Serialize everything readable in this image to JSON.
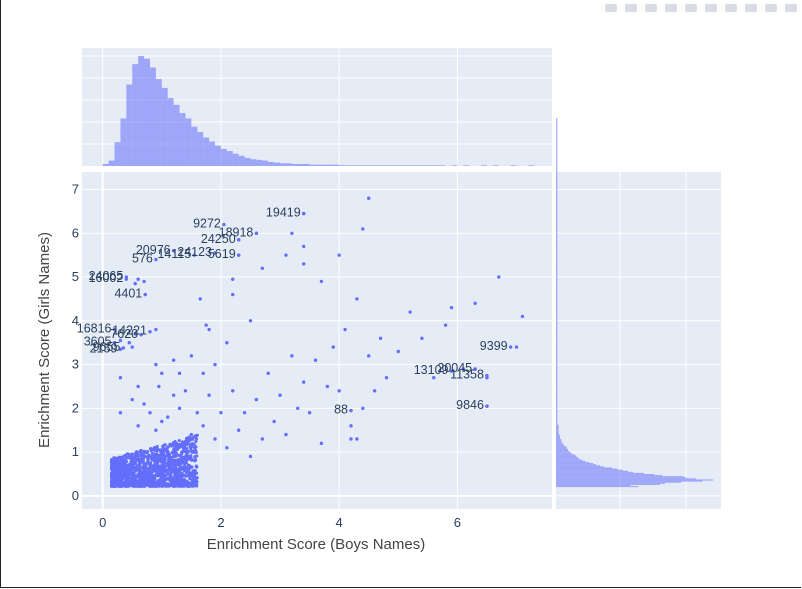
{
  "modebar": {
    "buttons": [
      {
        "name": "camera-icon"
      },
      {
        "name": "zoom-icon"
      },
      {
        "name": "pan-icon"
      },
      {
        "name": "box-select-icon"
      },
      {
        "name": "lasso-select-icon"
      },
      {
        "name": "zoom-in-icon"
      },
      {
        "name": "zoom-out-icon"
      },
      {
        "name": "autoscale-icon"
      },
      {
        "name": "reset-axes-icon"
      },
      {
        "name": "plotly-logo-icon"
      }
    ]
  },
  "chart_data": {
    "type": "scatter",
    "title": "",
    "xlabel": "Enrichment Score (Boys Names)",
    "ylabel": "Enrichment Score (Girls Names)",
    "xlim": [
      -0.35,
      7.6
    ],
    "ylim": [
      -0.3,
      7.4
    ],
    "xticks": [
      0,
      2,
      4,
      6
    ],
    "yticks": [
      0,
      1,
      2,
      3,
      4,
      5,
      6,
      7
    ],
    "colors": {
      "marker": "#636efa",
      "bars": "#636efa",
      "plot_bg": "#e5ecf6",
      "grid": "#ffffff",
      "text": "#2a3f5f"
    },
    "marginal_x": "histogram",
    "marginal_y": "histogram",
    "labeled_points": [
      {
        "label": "19419",
        "x": 3.4,
        "y": 6.45
      },
      {
        "label": "9272",
        "x": 2.05,
        "y": 6.2
      },
      {
        "label": "18918",
        "x": 2.6,
        "y": 6.0
      },
      {
        "label": "24250",
        "x": 2.3,
        "y": 5.85
      },
      {
        "label": "20976",
        "x": 1.2,
        "y": 5.6
      },
      {
        "label": "24123",
        "x": 1.9,
        "y": 5.55
      },
      {
        "label": "5619",
        "x": 2.3,
        "y": 5.5
      },
      {
        "label": "576",
        "x": 0.9,
        "y": 5.4
      },
      {
        "label": "14115",
        "x": 1.55,
        "y": 5.5
      },
      {
        "label": "24065",
        "x": 0.4,
        "y": 5.0
      },
      {
        "label": "16002",
        "x": 0.4,
        "y": 4.95
      },
      {
        "label": "4401",
        "x": 0.72,
        "y": 4.6
      },
      {
        "label": "16816",
        "x": 0.2,
        "y": 3.8
      },
      {
        "label": "14221",
        "x": 0.8,
        "y": 3.75
      },
      {
        "label": "7620",
        "x": 0.65,
        "y": 3.68
      },
      {
        "label": "3605",
        "x": 0.2,
        "y": 3.5
      },
      {
        "label": "9655",
        "x": 0.35,
        "y": 3.38
      },
      {
        "label": "2159",
        "x": 0.3,
        "y": 3.35
      },
      {
        "label": "9399",
        "x": 6.9,
        "y": 3.4
      },
      {
        "label": "13109",
        "x": 5.9,
        "y": 2.85
      },
      {
        "label": "20045",
        "x": 6.3,
        "y": 2.9
      },
      {
        "label": "11358",
        "x": 6.5,
        "y": 2.75
      },
      {
        "label": "9846",
        "x": 6.5,
        "y": 2.05
      },
      {
        "label": "88",
        "x": 4.2,
        "y": 1.95
      }
    ],
    "x_hist_counts": [
      3,
      8,
      35,
      70,
      120,
      150,
      162,
      158,
      145,
      128,
      115,
      100,
      90,
      78,
      70,
      58,
      50,
      42,
      36,
      30,
      25,
      22,
      18,
      15,
      12,
      10,
      9,
      8,
      6,
      5,
      4,
      4,
      3,
      3,
      3,
      2,
      2,
      2,
      2,
      2,
      1,
      1,
      1,
      1,
      1,
      1,
      1,
      1,
      1,
      1,
      1,
      1,
      1,
      1,
      1,
      1,
      1,
      1,
      0,
      1,
      0,
      1,
      0,
      0,
      1,
      0,
      1,
      0,
      0,
      1,
      0,
      0,
      1,
      0,
      0,
      0,
      0,
      0,
      0
    ],
    "y_hist_counts": [
      62,
      56,
      78,
      82,
      94,
      110,
      118,
      105,
      98,
      96,
      80,
      74,
      66,
      58,
      54,
      50,
      46,
      42,
      36,
      33,
      30,
      28,
      25,
      22,
      20,
      18,
      17,
      16,
      15,
      14,
      12,
      11,
      10,
      9,
      9,
      8,
      8,
      7,
      6,
      5,
      5,
      4,
      4,
      4,
      3,
      3,
      3,
      3,
      2,
      2,
      2,
      2,
      2,
      2,
      2,
      2,
      2,
      1,
      1,
      1,
      1,
      1,
      1,
      1,
      1,
      1,
      1,
      1,
      1,
      1,
      1,
      1,
      1,
      1,
      1,
      1,
      1,
      1,
      1,
      1,
      1,
      1,
      1,
      1,
      1,
      1,
      1,
      1,
      1,
      1,
      1,
      1,
      1,
      1,
      1,
      1,
      1,
      1,
      1,
      1,
      1,
      1,
      1,
      1,
      1,
      1,
      1,
      1,
      1,
      1,
      1,
      1,
      1,
      1,
      1,
      1,
      1,
      1,
      1,
      1,
      1,
      1,
      1,
      1,
      1,
      1,
      1,
      1,
      1,
      1,
      1,
      1,
      1,
      1,
      1,
      1,
      1,
      1,
      1,
      1,
      1,
      1,
      1,
      1,
      1,
      1,
      1,
      1,
      1,
      1,
      1,
      1,
      1,
      1,
      1,
      1,
      1,
      1,
      1,
      1,
      1,
      1,
      1,
      1,
      1,
      1,
      1,
      1,
      1,
      1,
      1,
      1,
      1,
      1,
      1,
      1,
      1,
      1,
      1,
      1,
      1,
      1,
      1,
      1,
      1,
      1,
      1,
      1,
      1,
      1,
      1,
      1,
      1,
      1,
      1,
      1,
      1,
      1,
      1,
      1,
      1,
      1,
      1,
      1,
      1,
      1,
      1,
      1,
      1,
      1,
      1,
      1,
      1,
      1,
      1,
      1,
      1,
      1,
      1,
      1,
      1,
      1,
      1,
      1,
      1,
      1,
      1,
      1,
      1,
      1,
      1,
      1,
      1,
      1,
      1,
      1,
      1,
      1,
      1,
      1,
      1,
      1,
      1,
      1,
      1,
      1,
      1,
      1,
      1,
      1,
      1,
      1,
      1,
      1,
      1,
      1,
      1,
      1,
      1,
      1,
      1,
      1,
      1,
      1,
      1,
      1,
      1,
      1,
      1,
      1,
      1,
      1,
      1,
      1,
      1,
      1,
      1,
      1,
      1,
      1,
      1,
      1,
      1,
      1,
      1,
      1,
      1,
      1,
      1,
      1,
      1,
      1,
      1,
      1,
      1,
      1,
      1,
      1,
      1,
      1,
      1,
      1,
      1,
      1,
      1,
      1,
      1,
      1,
      1,
      1,
      1,
      1,
      1,
      1,
      1,
      1,
      1,
      1,
      1,
      1,
      1,
      1,
      1,
      1,
      1,
      1,
      1,
      1,
      1,
      1,
      1,
      1,
      1,
      1,
      1,
      1,
      1
    ],
    "cluster": {
      "n": 1400,
      "x_range": [
        0.15,
        1.6
      ],
      "y_range": [
        0.22,
        1.2
      ]
    },
    "scatter_points": [
      [
        0.8,
        1.9
      ],
      [
        1.0,
        1.7
      ],
      [
        1.3,
        2.0
      ],
      [
        1.5,
        1.4
      ],
      [
        1.6,
        1.9
      ],
      [
        1.7,
        1.6
      ],
      [
        1.8,
        2.3
      ],
      [
        1.9,
        1.3
      ],
      [
        2.0,
        1.9
      ],
      [
        2.1,
        1.1
      ],
      [
        2.2,
        2.4
      ],
      [
        2.3,
        1.5
      ],
      [
        2.4,
        1.9
      ],
      [
        2.5,
        0.9
      ],
      [
        2.6,
        2.2
      ],
      [
        2.7,
        1.3
      ],
      [
        2.8,
        2.8
      ],
      [
        2.9,
        1.7
      ],
      [
        3.0,
        2.3
      ],
      [
        3.1,
        1.4
      ],
      [
        3.2,
        3.2
      ],
      [
        3.3,
        2.0
      ],
      [
        3.4,
        2.6
      ],
      [
        3.5,
        1.9
      ],
      [
        3.6,
        3.1
      ],
      [
        3.7,
        1.2
      ],
      [
        3.8,
        2.5
      ],
      [
        3.9,
        3.4
      ],
      [
        4.0,
        2.4
      ],
      [
        4.1,
        3.8
      ],
      [
        4.2,
        1.3
      ],
      [
        4.3,
        4.5
      ],
      [
        4.4,
        2.0
      ],
      [
        4.5,
        3.2
      ],
      [
        4.6,
        2.4
      ],
      [
        4.7,
        3.6
      ],
      [
        4.8,
        2.7
      ],
      [
        5.0,
        3.3
      ],
      [
        5.2,
        4.2
      ],
      [
        5.4,
        3.6
      ],
      [
        5.6,
        2.7
      ],
      [
        5.8,
        3.9
      ],
      [
        5.9,
        4.3
      ],
      [
        6.1,
        2.9
      ],
      [
        6.3,
        4.4
      ],
      [
        6.7,
        5.0
      ],
      [
        7.0,
        3.4
      ],
      [
        7.1,
        4.1
      ],
      [
        6.5,
        2.05
      ],
      [
        6.5,
        2.7
      ],
      [
        3.4,
        6.45
      ],
      [
        4.5,
        6.8
      ],
      [
        4.4,
        6.1
      ],
      [
        2.6,
        6.0
      ],
      [
        3.2,
        6.0
      ],
      [
        2.3,
        5.85
      ],
      [
        3.4,
        5.7
      ],
      [
        2.3,
        5.5
      ],
      [
        3.1,
        5.5
      ],
      [
        4.0,
        5.5
      ],
      [
        3.4,
        5.3
      ],
      [
        2.7,
        5.2
      ],
      [
        2.2,
        4.95
      ],
      [
        3.7,
        4.9
      ],
      [
        0.72,
        4.6
      ],
      [
        2.2,
        4.6
      ],
      [
        1.65,
        4.5
      ],
      [
        0.55,
        4.85
      ],
      [
        0.7,
        4.9
      ],
      [
        0.6,
        4.95
      ],
      [
        1.75,
        3.9
      ],
      [
        0.9,
        3.8
      ],
      [
        1.8,
        3.8
      ],
      [
        0.3,
        3.55
      ],
      [
        0.55,
        3.7
      ],
      [
        0.45,
        3.5
      ],
      [
        0.5,
        3.4
      ],
      [
        0.9,
        3.0
      ],
      [
        1.2,
        3.1
      ],
      [
        1.3,
        2.8
      ],
      [
        1.5,
        3.2
      ],
      [
        1.0,
        2.8
      ],
      [
        0.6,
        2.5
      ],
      [
        0.3,
        2.7
      ],
      [
        0.95,
        2.5
      ],
      [
        1.4,
        2.4
      ],
      [
        1.7,
        2.8
      ],
      [
        1.9,
        3.0
      ],
      [
        2.1,
        3.5
      ],
      [
        2.5,
        4.0
      ],
      [
        4.2,
        1.95
      ],
      [
        4.2,
        1.6
      ],
      [
        4.3,
        1.3
      ],
      [
        0.5,
        2.2
      ],
      [
        0.7,
        2.1
      ],
      [
        0.3,
        1.9
      ],
      [
        1.2,
        2.3
      ],
      [
        1.1,
        1.8
      ],
      [
        0.9,
        1.5
      ],
      [
        0.6,
        1.6
      ]
    ]
  }
}
